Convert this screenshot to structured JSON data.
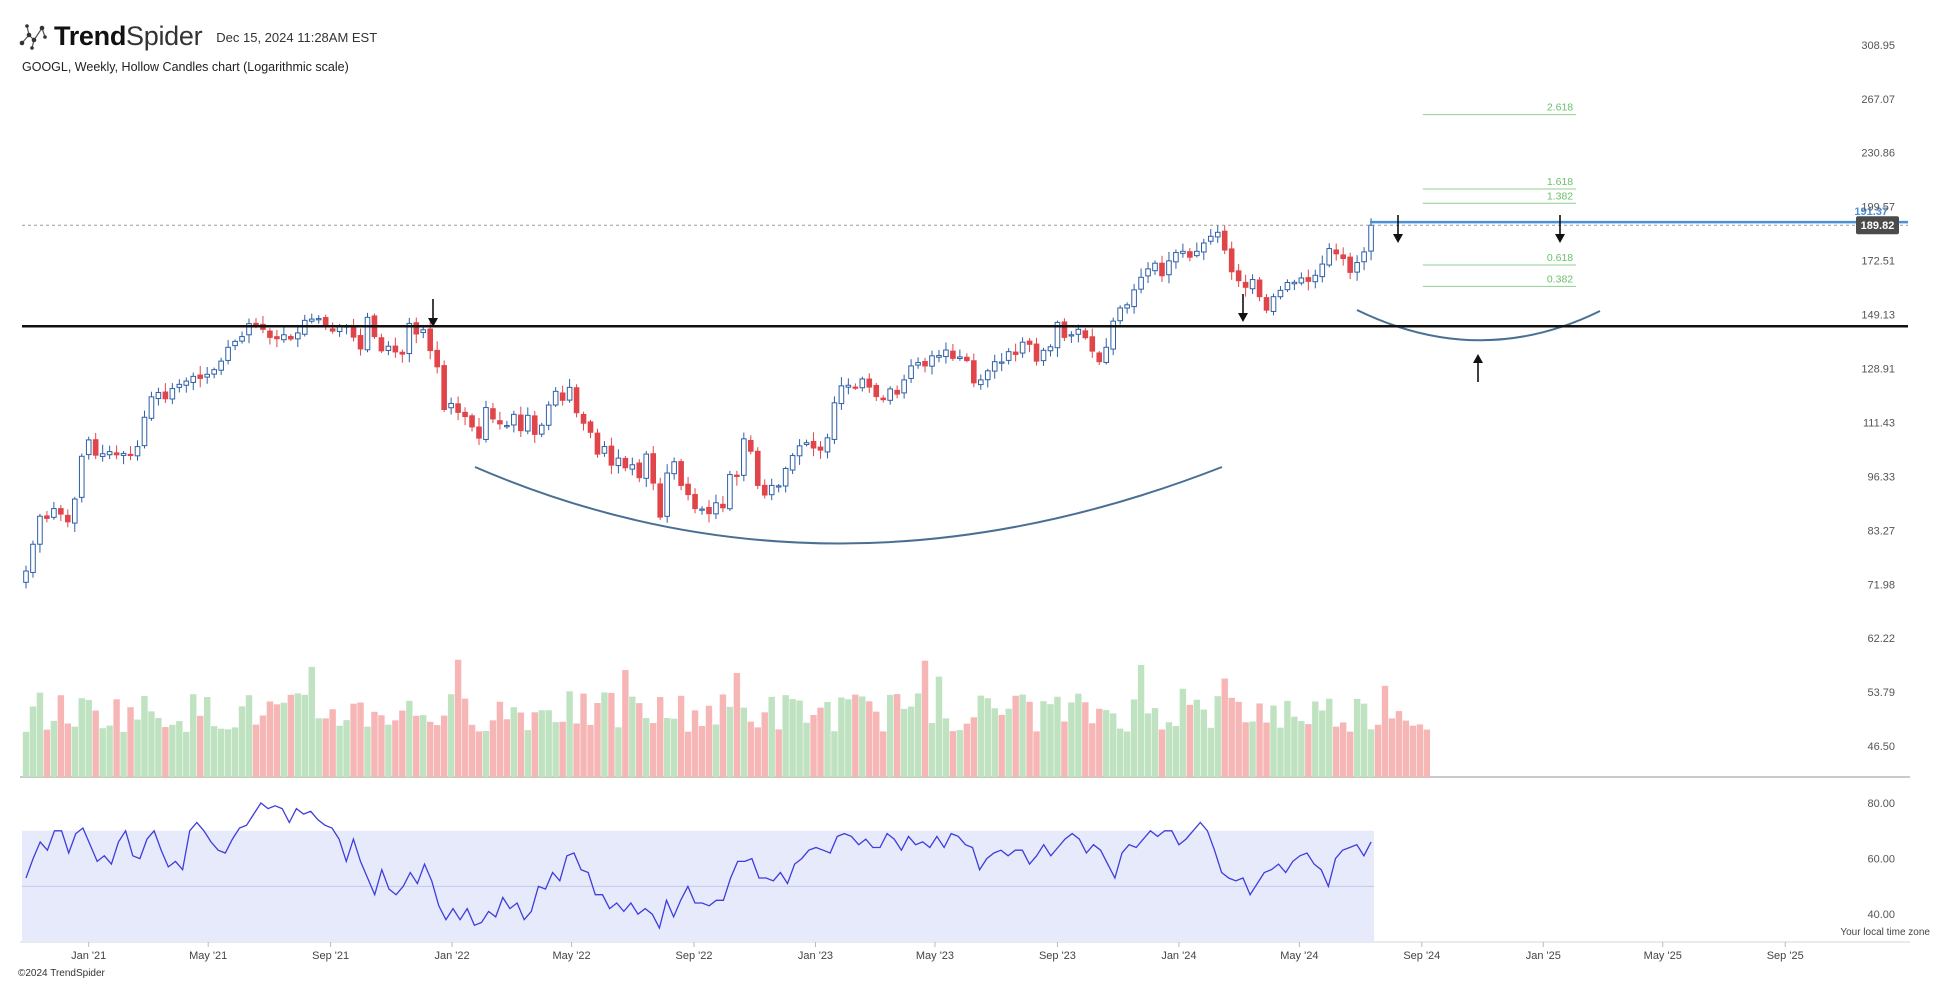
{
  "header": {
    "brand_bold": "Trend",
    "brand_light": "Spider",
    "date": "Dec 15, 2024 11:28AM EST",
    "subtitle": "GOOGL, Weekly, Hollow Candles chart (Logarithmic scale)",
    "logo_icon": "trendspider-network-icon"
  },
  "footer": {
    "copyright": "©2024 TrendSpider",
    "timezone": "Your local time zone"
  },
  "colors": {
    "up": "#2f5fa7",
    "down": "#e0454a",
    "vol_up": "#bfe2c0",
    "vol_down": "#f6b6b6",
    "rsi_line": "#3d3ddc",
    "rsi_band": "#e7eafb",
    "fib": "#8fcf8f",
    "resistance": "#4a90d9",
    "arc": "#4a6f94"
  },
  "chart_data": {
    "type": "candlestick",
    "symbol": "GOOGL",
    "interval": "Weekly",
    "style": "Hollow Candles",
    "scale": "log",
    "price_ticks": [
      "308.95",
      "267.07",
      "230.86",
      "199.57",
      "172.51",
      "149.13",
      "128.91",
      "111.43",
      "96.33",
      "83.27",
      "71.98",
      "62.22",
      "53.79",
      "46.50"
    ],
    "x_ticks": [
      "Jan '21",
      "May '21",
      "Sep '21",
      "Jan '22",
      "May '22",
      "Sep '22",
      "Jan '23",
      "May '23",
      "Sep '23",
      "Jan '24",
      "May '24",
      "Sep '24",
      "Jan '25",
      "May '25",
      "Sep '25"
    ],
    "x_range": [
      "2020-10-26",
      "2025-10-20"
    ],
    "y_range": [
      40.2,
      339.4
    ],
    "last_price": "189.82",
    "resistance_level": "191.37",
    "support_level": 144.5,
    "fib_levels": [
      "2.618",
      "1.618",
      "1.382",
      "0.618",
      "0.382"
    ],
    "fib_values": [
      255.9,
      209.3,
      201.4,
      170.5,
      160.9
    ],
    "fib_range": [
      "2024-09-02",
      "2025-02-03"
    ],
    "close": [
      74.6,
      80.2,
      86.5,
      86.0,
      88.3,
      87.0,
      85.2,
      90.6,
      101.7,
      106.3,
      102.0,
      102.4,
      103.0,
      102.1,
      102.5,
      102.1,
      104.4,
      113.0,
      119.4,
      120.8,
      118.8,
      122.1,
      123.5,
      124.6,
      126.2,
      125.5,
      126.9,
      128.5,
      131.5,
      136.5,
      138.7,
      140.5,
      145.5,
      144.8,
      143.3,
      140.2,
      139.7,
      141.2,
      139.6,
      141.9,
      146.8,
      147.3,
      147.5,
      144.2,
      142.6,
      144.4,
      144.6,
      140.3,
      135.9,
      148.0,
      140.5,
      135.2,
      136.9,
      134.8,
      134.0,
      145.6,
      141.5,
      143.1,
      135.3,
      129.5,
      115.4,
      117.3,
      114.5,
      113.2,
      110.1,
      106.8,
      116.0,
      112.5,
      111.0,
      110.5,
      113.9,
      109.0,
      113.6,
      107.9,
      110.6,
      116.8,
      121.2,
      118.3,
      122.5,
      114.4,
      111.2,
      108.5,
      102.3,
      104.4,
      99.3,
      101.2,
      98.6,
      99.4,
      96.0,
      102.3,
      94.6,
      86.3,
      97.2,
      100.2,
      94.0,
      91.7,
      88.3,
      88.2,
      87.1,
      89.7,
      88.5,
      96.8,
      96.3,
      106.6,
      103.1,
      94.0,
      91.6,
      94.0,
      93.9,
      98.4,
      101.9,
      104.6,
      105.5,
      104.0,
      103.4,
      106.9,
      117.5,
      123.0,
      123.2,
      122.6,
      125.3,
      122.6,
      119.5,
      118.5,
      122.0,
      120.3,
      125.0,
      129.8,
      131.0,
      129.8,
      133.4,
      133.5,
      135.5,
      132.5,
      133.0,
      131.7,
      124.0,
      125.0,
      128.1,
      131.3,
      131.2,
      134.9,
      133.9,
      138.4,
      137.6,
      131.5,
      135.4,
      136.7,
      146.0,
      140.2,
      141.2,
      143.3,
      140.1,
      135.1,
      131.3,
      136.5,
      146.5,
      151.8,
      153.1,
      159.4,
      164.9,
      168.7,
      171.3,
      165.6,
      172.4,
      176.3,
      176.9,
      174.1,
      176.9,
      180.9,
      184.2,
      186.2,
      177.5,
      167.4,
      163.4,
      160.5,
      163.9,
      156.5,
      150.9,
      156.5,
      159.2,
      162.6,
      162.7,
      164.6,
      163.1,
      165.8,
      170.9,
      178.2,
      175.7,
      173.5,
      167.1,
      171.6,
      176.6,
      189.8
    ],
    "volume_bars": 202,
    "rsi": {
      "ticks": [
        "80.00",
        "60.00",
        "40.00"
      ],
      "band": [
        30,
        70
      ],
      "midline": 50,
      "values": [
        53,
        60,
        66,
        63,
        70,
        70,
        62,
        69,
        71,
        65,
        59,
        61,
        58,
        66,
        70,
        61,
        60,
        67,
        70,
        63,
        57,
        59,
        56,
        70,
        73,
        70,
        66,
        63,
        62,
        67,
        71,
        72,
        76,
        80,
        78,
        79,
        78,
        73,
        78,
        76,
        77,
        74,
        72,
        71,
        67,
        59,
        67,
        59,
        53,
        47,
        56,
        49,
        47,
        50,
        55,
        51,
        58,
        52,
        43,
        38,
        42,
        38,
        42,
        36,
        37,
        41,
        39,
        46,
        42,
        44,
        38,
        41,
        50,
        49,
        55,
        52,
        61,
        62,
        56,
        55,
        47,
        47,
        42,
        44,
        41,
        44,
        40,
        42,
        40,
        35,
        45,
        39,
        45,
        50,
        44,
        44,
        43,
        45,
        45,
        53,
        59,
        59,
        60,
        53,
        53,
        52,
        55,
        51,
        58,
        60,
        63,
        64,
        63,
        62,
        68,
        69,
        68,
        65,
        67,
        64,
        64,
        69,
        67,
        63,
        68,
        65,
        66,
        64,
        68,
        64,
        69,
        68,
        65,
        64,
        56,
        60,
        62,
        63,
        61,
        63,
        63,
        58,
        61,
        65,
        61,
        64,
        67,
        69,
        67,
        62,
        65,
        63,
        58,
        53,
        62,
        65,
        64,
        67,
        70,
        68,
        70,
        70,
        65,
        67,
        70,
        73,
        70,
        63,
        55,
        53,
        52,
        53,
        47,
        51,
        55,
        56,
        58,
        55,
        59,
        61,
        62,
        58,
        56,
        50,
        60,
        63,
        64,
        65,
        61,
        66
      ]
    }
  }
}
